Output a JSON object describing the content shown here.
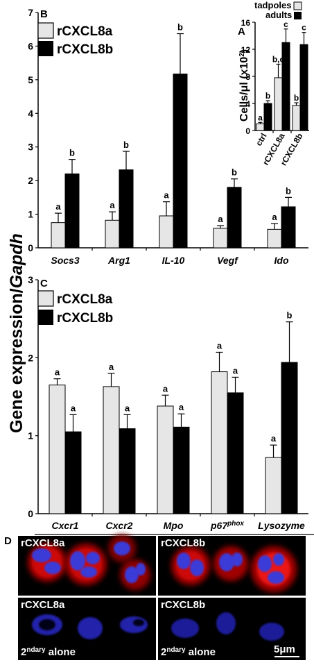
{
  "ylabel_parts": [
    "Gene expression/",
    "Gapdh"
  ],
  "panel_labels": {
    "A": "A",
    "B": "B",
    "C": "C",
    "D": "D"
  },
  "colors": {
    "rcxcl8a": "#e6e6e6",
    "rcxcl8b": "#000000",
    "microscopy_bg": "#000000"
  },
  "chart_data": [
    {
      "panel": "B",
      "type": "bar",
      "categories": [
        "Socs3",
        "Arg1",
        "IL-10",
        "Vegf",
        "Ido"
      ],
      "series": [
        {
          "name": "rCXCL8a",
          "values": [
            0.75,
            0.82,
            0.95,
            0.58,
            0.55
          ],
          "errors": [
            0.28,
            0.25,
            0.42,
            0.08,
            0.17
          ],
          "letters": [
            "a",
            "a",
            "a",
            "a",
            "a"
          ]
        },
        {
          "name": "rCXCL8b",
          "values": [
            2.2,
            2.32,
            5.17,
            1.8,
            1.22
          ],
          "errors": [
            0.43,
            0.55,
            1.2,
            0.25,
            0.28
          ],
          "letters": [
            "b",
            "b",
            "b",
            "b",
            "b"
          ]
        }
      ],
      "ylim": [
        0,
        7
      ],
      "yticks": [
        "0",
        "1",
        "2",
        "3",
        "4",
        "5",
        "6",
        "7"
      ],
      "legend": [
        "rCXCL8a",
        "rCXCL8b"
      ]
    },
    {
      "panel": "A",
      "type": "bar",
      "categories": [
        "ctrl",
        "rCXCL8a",
        "rCXCL8b"
      ],
      "series": [
        {
          "name": "tadpoles",
          "values": [
            1.0,
            7.8,
            3.7
          ],
          "errors": [
            0.2,
            2.0,
            0.4
          ],
          "letters": [
            "a",
            "b,c",
            "b"
          ]
        },
        {
          "name": "adults",
          "values": [
            4.0,
            13.0,
            12.7
          ],
          "errors": [
            0.4,
            2.0,
            1.8
          ],
          "letters": [
            "b",
            "c",
            "c"
          ]
        }
      ],
      "ylim": [
        0,
        16
      ],
      "yticks": [
        "0",
        "4",
        "8",
        "12",
        "16"
      ],
      "ylabel_parts": [
        "Cells/",
        "μ",
        "l (x10",
        "2",
        ")"
      ],
      "legend": [
        "tadpoles",
        "adults"
      ]
    },
    {
      "panel": "C",
      "type": "bar",
      "categories": [
        "Cxcr1",
        "Cxcr2",
        "Mpo",
        "p67",
        "Lysozyme"
      ],
      "category_superscripts": [
        "",
        "",
        "",
        "phox",
        ""
      ],
      "series": [
        {
          "name": "rCXCL8a",
          "values": [
            1.65,
            1.63,
            1.38,
            1.82,
            0.72
          ],
          "errors": [
            0.08,
            0.17,
            0.14,
            0.25,
            0.16
          ],
          "letters": [
            "a",
            "a",
            "a",
            "a",
            "a"
          ]
        },
        {
          "name": "rCXCL8b",
          "values": [
            1.05,
            1.09,
            1.11,
            1.55,
            1.94
          ],
          "errors": [
            0.22,
            0.18,
            0.17,
            0.2,
            0.52
          ],
          "letters": [
            "a",
            "a",
            "a",
            "a",
            "b"
          ]
        }
      ],
      "ylim": [
        0,
        3
      ],
      "yticks": [
        "0",
        "1",
        "2",
        "3"
      ],
      "legend": [
        "rCXCL8a",
        "rCXCL8b"
      ]
    }
  ],
  "microscopy": {
    "labels": [
      "rCXCL8a",
      "rCXCL8b",
      "rCXCL8a",
      "rCXCL8b"
    ],
    "secondary_labels": [
      [
        "2",
        "ndary",
        " alone"
      ],
      [
        "2",
        "ndary",
        " alone"
      ]
    ],
    "scale_bar_parts": [
      "5",
      "μ",
      "m"
    ]
  }
}
